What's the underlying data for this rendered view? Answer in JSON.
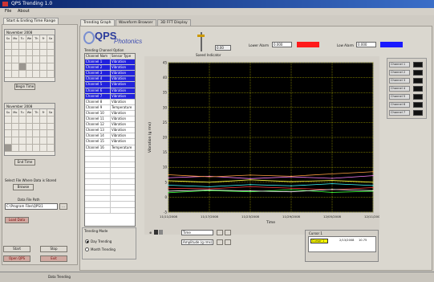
{
  "window": {
    "title": "QPS Trending 1.0"
  },
  "menu": [
    "File",
    "About"
  ],
  "left_tab": "Start & Ending Time Range",
  "calendars": [
    {
      "header": "November      2008",
      "days": [
        "Su",
        "Mo",
        "Tu",
        "We",
        "Th",
        "Fr",
        "Sa"
      ]
    },
    {
      "header": "November      2008",
      "days": [
        "Su",
        "Mo",
        "Tu",
        "We",
        "Th",
        "Fr",
        "Sa"
      ]
    }
  ],
  "left_controls": {
    "start_button": "Begin Time",
    "end_button": "End Time",
    "sel_label": "Select File Where Data is Stored",
    "browse_button": "Browse",
    "file_label": "Data File Path",
    "file_value": "C:\\Program Files\\QPS\\1",
    "load_button": "Load Data",
    "btn_a": "Start",
    "btn_b": "Stop",
    "open_qps": "Open QPS",
    "exit": "Exit"
  },
  "tabs": [
    "Trending Graph",
    "Waveform Browser",
    "3D FFT Display"
  ],
  "logo": {
    "main": "QPS",
    "sub": "Photonics"
  },
  "table_title": "Trending Channel Option",
  "table_headers": [
    "Channel Nam",
    "Sensor Type"
  ],
  "channels": [
    {
      "name": "Channel 1",
      "type": "Vibration",
      "sel": true
    },
    {
      "name": "Channel 2",
      "type": "Vibration",
      "sel": true
    },
    {
      "name": "Channel 3",
      "type": "Vibration",
      "sel": true
    },
    {
      "name": "Channel 4",
      "type": "Vibration",
      "sel": true
    },
    {
      "name": "Channel 5",
      "type": "Vibration",
      "sel": true
    },
    {
      "name": "Channel 6",
      "type": "Vibration",
      "sel": true
    },
    {
      "name": "Channel 7",
      "type": "Vibration",
      "sel": true
    },
    {
      "name": "Channel 8",
      "type": "Vibration",
      "sel": false
    },
    {
      "name": "Channel 9",
      "type": "Temperature",
      "sel": false
    },
    {
      "name": "Channel 10",
      "type": "Vibration",
      "sel": false
    },
    {
      "name": "Channel 11",
      "type": "Vibration",
      "sel": false
    },
    {
      "name": "Channel 12",
      "type": "Vibration",
      "sel": false
    },
    {
      "name": "Channel 13",
      "type": "Vibration",
      "sel": false
    },
    {
      "name": "Channel 14",
      "type": "Vibration",
      "sel": false
    },
    {
      "name": "Channel 15",
      "type": "Vibration",
      "sel": false
    },
    {
      "name": "Channel 16",
      "type": "Temperature",
      "sel": false
    }
  ],
  "mode": {
    "title": "Trending Mode",
    "opt1": "Day Trending",
    "opt2": "Month Trending"
  },
  "knob": {
    "label": "Speed Indicator",
    "value": "0.00"
  },
  "limits": [
    {
      "label": "Lower Alarm",
      "value": "0.000",
      "color": "#ff1a1a"
    },
    {
      "label": "Low Alarm",
      "value": "0.000",
      "color": "#1a1aff"
    }
  ],
  "legend": [
    "Channel 1",
    "Channel 2",
    "Channel 3",
    "Channel 4",
    "Channel 5",
    "Channel 6",
    "Channel 7"
  ],
  "graph_controls": {
    "time_value": "Time",
    "zoom_value": "Amplitude (g rms)"
  },
  "cursor": {
    "title": "Cursor 1",
    "name": "Cursor 1",
    "x": "2/13/2008",
    "y": "10.75"
  },
  "status": {
    "text": "Data Trending"
  },
  "chart_data": {
    "type": "line",
    "x": [
      "11/11/2008",
      "11/17/2008",
      "11/23/2008",
      "11/29/2008",
      "12/05/2008",
      "12/11/2008"
    ],
    "xlabel": "Time",
    "ylabel": "Vibration (g rms)",
    "ylim": [
      -5,
      45
    ],
    "yticks": [
      -5,
      0,
      5,
      10,
      15,
      20,
      25,
      30,
      35,
      40,
      45
    ],
    "grid": true,
    "series": [
      {
        "color": "#ff4040",
        "values": [
          3.0,
          2.8,
          3.5,
          3.0,
          2.5,
          3.2
        ]
      },
      {
        "color": "#ffff40",
        "values": [
          5.5,
          5.0,
          5.8,
          5.2,
          5.6,
          5.0
        ]
      },
      {
        "color": "#40ff40",
        "values": [
          1.5,
          2.2,
          1.8,
          2.5,
          1.6,
          2.0
        ]
      },
      {
        "color": "#40ffff",
        "values": [
          4.0,
          3.5,
          4.2,
          3.8,
          4.5,
          3.9
        ]
      },
      {
        "color": "#ff80ff",
        "values": [
          6.5,
          7.0,
          6.2,
          6.8,
          6.3,
          7.2
        ]
      },
      {
        "color": "#ffffff",
        "values": [
          2.0,
          2.4,
          2.1,
          1.8,
          2.6,
          2.2
        ]
      },
      {
        "color": "#ffa040",
        "values": [
          7.5,
          6.8,
          7.4,
          7.0,
          7.8,
          8.5
        ]
      }
    ]
  }
}
